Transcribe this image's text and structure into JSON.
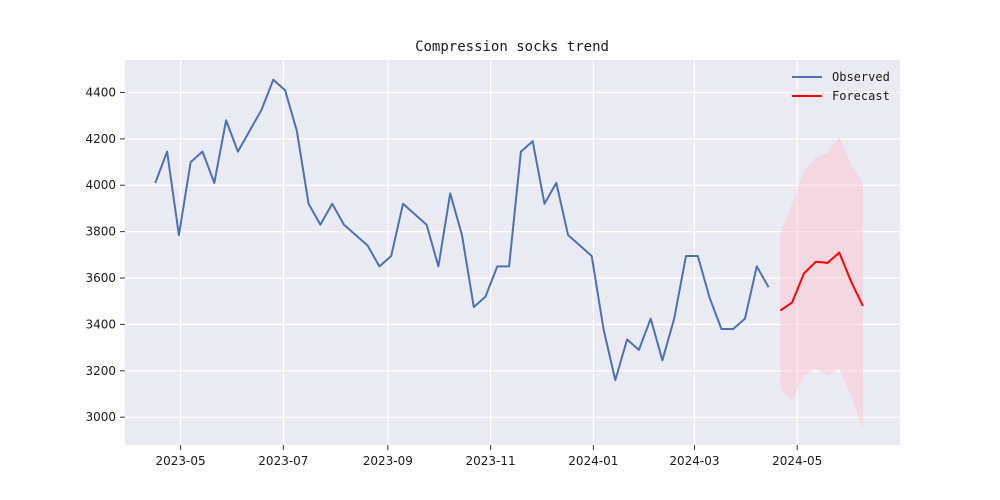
{
  "chart_data": {
    "type": "line",
    "title": "Compression socks trend",
    "xlabel": "",
    "ylabel": "",
    "x_ticks": [
      "2023-05",
      "2023-07",
      "2023-09",
      "2023-11",
      "2024-01",
      "2024-03",
      "2024-05"
    ],
    "y_ticks": [
      "3000",
      "3200",
      "3400",
      "3600",
      "3800",
      "4000",
      "4200",
      "4400"
    ],
    "ylim": [
      2880,
      4540
    ],
    "xlim": [
      "2023-03-29",
      "2024-07-01"
    ],
    "grid": true,
    "legend_position": "top-right",
    "legend": [
      "Observed",
      "Forecast"
    ],
    "colors": {
      "observed": "#4c72b0",
      "forecast": "#ff0000",
      "interval": "#ffc0cb",
      "plot_background": "#eaeaf2",
      "grid": "#ffffff"
    },
    "series": [
      {
        "name": "Observed",
        "x": [
          "2023-04-16",
          "2023-04-23",
          "2023-04-30",
          "2023-05-07",
          "2023-05-14",
          "2023-05-21",
          "2023-05-28",
          "2023-06-04",
          "2023-06-11",
          "2023-06-18",
          "2023-06-25",
          "2023-07-02",
          "2023-07-09",
          "2023-07-16",
          "2023-07-23",
          "2023-07-30",
          "2023-08-06",
          "2023-08-13",
          "2023-08-20",
          "2023-08-27",
          "2023-09-03",
          "2023-09-10",
          "2023-09-17",
          "2023-09-24",
          "2023-10-01",
          "2023-10-08",
          "2023-10-15",
          "2023-10-22",
          "2023-10-29",
          "2023-11-05",
          "2023-11-12",
          "2023-11-19",
          "2023-11-26",
          "2023-12-03",
          "2023-12-10",
          "2023-12-17",
          "2023-12-24",
          "2023-12-31",
          "2024-01-07",
          "2024-01-14",
          "2024-01-21",
          "2024-01-28",
          "2024-02-04",
          "2024-02-11",
          "2024-02-18",
          "2024-02-25",
          "2024-03-03",
          "2024-03-10",
          "2024-03-17",
          "2024-03-24",
          "2024-03-31",
          "2024-04-07",
          "2024-04-14"
        ],
        "y": [
          4010,
          4145,
          3785,
          4100,
          4145,
          4010,
          4280,
          4145,
          4235,
          4325,
          4455,
          4410,
          4235,
          3920,
          3830,
          3920,
          3830,
          3785,
          3740,
          3650,
          3695,
          3920,
          3875,
          3830,
          3650,
          3965,
          3785,
          3475,
          3520,
          3650,
          3650,
          4145,
          4190,
          3920,
          4010,
          3785,
          3740,
          3695,
          3380,
          3160,
          3335,
          3290,
          3425,
          3245,
          3425,
          3695,
          3695,
          3515,
          3380,
          3380,
          3425,
          3650,
          3560
        ]
      },
      {
        "name": "Forecast",
        "x": [
          "2024-04-21",
          "2024-04-28",
          "2024-05-05",
          "2024-05-12",
          "2024-05-19",
          "2024-05-26",
          "2024-06-02",
          "2024-06-09"
        ],
        "y": [
          3460,
          3495,
          3620,
          3670,
          3665,
          3710,
          3585,
          3480
        ],
        "lower": [
          3120,
          3070,
          3180,
          3210,
          3180,
          3210,
          3090,
          2950
        ],
        "upper": [
          3800,
          3920,
          4060,
          4120,
          4140,
          4210,
          4090,
          4010
        ]
      }
    ]
  }
}
